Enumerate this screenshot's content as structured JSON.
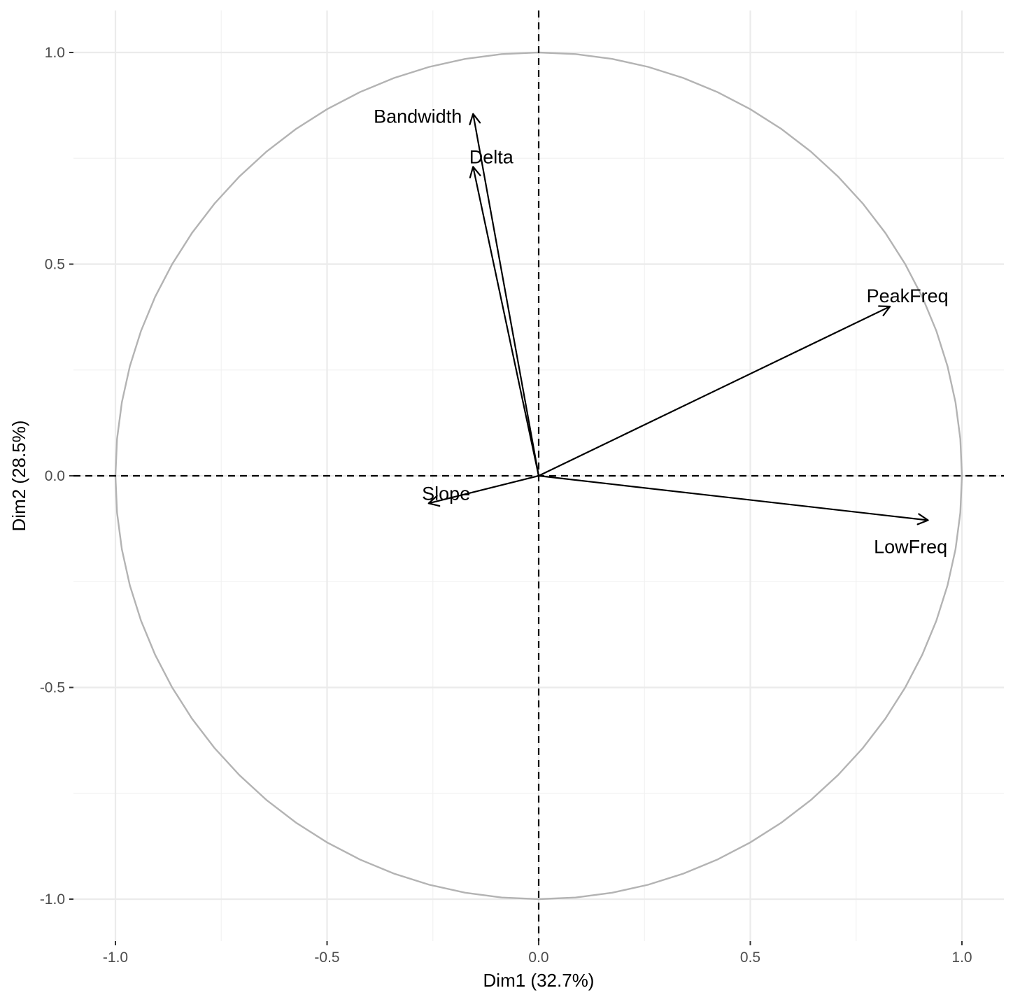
{
  "chart_data": {
    "type": "scatter",
    "subtype": "pca-variable-correlation-circle",
    "xlabel": "Dim1 (32.7%)",
    "ylabel": "Dim2 (28.5%)",
    "xlim": [
      -1.1,
      1.1
    ],
    "ylim": [
      -1.1,
      1.1
    ],
    "x_ticks": [
      -1.0,
      -0.5,
      0.0,
      0.5,
      1.0
    ],
    "y_ticks": [
      -1.0,
      -0.5,
      0.0,
      0.5,
      1.0
    ],
    "x_tick_labels": [
      "-1.0",
      "-0.5",
      "0.0",
      "0.5",
      "1.0"
    ],
    "y_tick_labels": [
      "-1.0",
      "-0.5",
      "0.0",
      "0.5",
      "1.0"
    ],
    "grid": true,
    "unit_circle": true,
    "reference_lines": {
      "x": 0,
      "y": 0,
      "style": "dashed"
    },
    "variables": [
      {
        "name": "Bandwidth",
        "x": -0.155,
        "y": 0.855
      },
      {
        "name": "Delta",
        "x": -0.155,
        "y": 0.73
      },
      {
        "name": "PeakFreq",
        "x": 0.83,
        "y": 0.4
      },
      {
        "name": "Slope",
        "x": -0.26,
        "y": -0.065
      },
      {
        "name": "LowFreq",
        "x": 0.92,
        "y": -0.105
      }
    ],
    "colors": {
      "arrows": "#000000",
      "circle": "#b3b3b3",
      "grid": "#ebebeb"
    }
  }
}
